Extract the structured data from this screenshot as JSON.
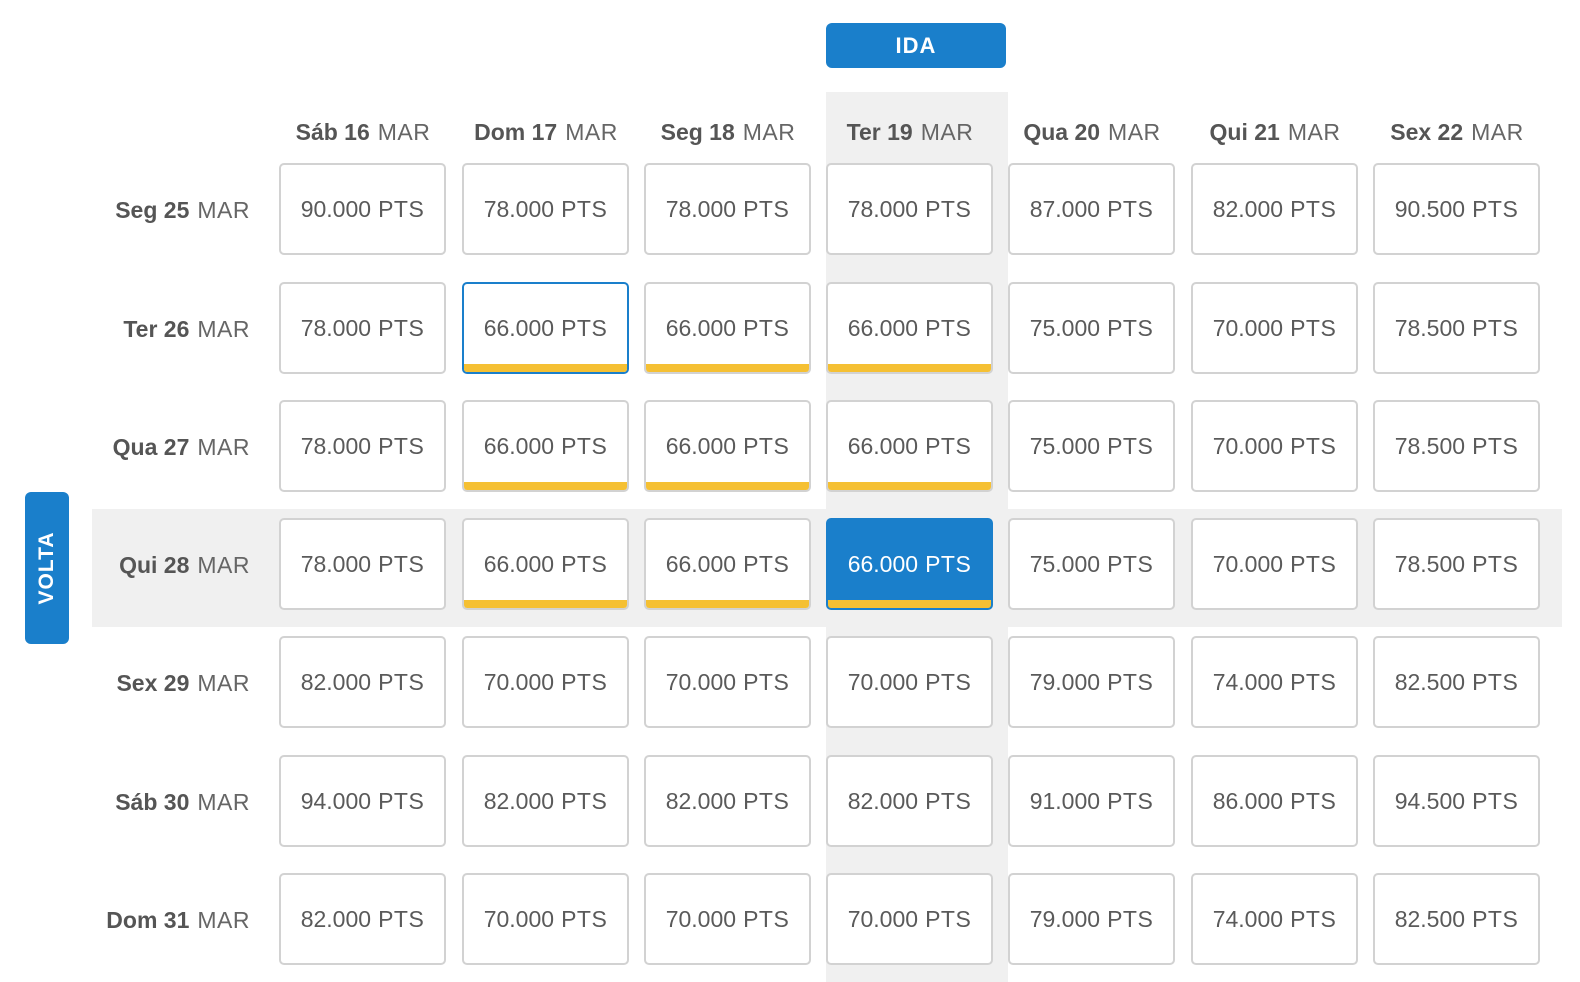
{
  "ida_label": "IDA",
  "volta_label": "VOLTA",
  "unit": "PTS",
  "colors": {
    "accent": "#1a7fcb",
    "best_price": "#f5c033",
    "highlight_bg": "#f0f0f0"
  },
  "departure_dates": [
    {
      "day": "Sáb 16",
      "month": "MAR"
    },
    {
      "day": "Dom 17",
      "month": "MAR"
    },
    {
      "day": "Seg 18",
      "month": "MAR"
    },
    {
      "day": "Ter 19",
      "month": "MAR"
    },
    {
      "day": "Qua 20",
      "month": "MAR"
    },
    {
      "day": "Qui 21",
      "month": "MAR"
    },
    {
      "day": "Sex 22",
      "month": "MAR"
    }
  ],
  "return_dates": [
    {
      "day": "Seg 25",
      "month": "MAR"
    },
    {
      "day": "Ter 26",
      "month": "MAR"
    },
    {
      "day": "Qua 27",
      "month": "MAR"
    },
    {
      "day": "Qui 28",
      "month": "MAR"
    },
    {
      "day": "Sex 29",
      "month": "MAR"
    },
    {
      "day": "Sáb 30",
      "month": "MAR"
    },
    {
      "day": "Dom 31",
      "month": "MAR"
    }
  ],
  "prices": [
    [
      "90.000",
      "78.000",
      "78.000",
      "78.000",
      "87.000",
      "82.000",
      "90.500"
    ],
    [
      "78.000",
      "66.000",
      "66.000",
      "66.000",
      "75.000",
      "70.000",
      "78.500"
    ],
    [
      "78.000",
      "66.000",
      "66.000",
      "66.000",
      "75.000",
      "70.000",
      "78.500"
    ],
    [
      "78.000",
      "66.000",
      "66.000",
      "66.000",
      "75.000",
      "70.000",
      "78.500"
    ],
    [
      "82.000",
      "70.000",
      "70.000",
      "70.000",
      "79.000",
      "74.000",
      "82.500"
    ],
    [
      "94.000",
      "82.000",
      "82.000",
      "82.000",
      "91.000",
      "86.000",
      "94.500"
    ],
    [
      "82.000",
      "70.000",
      "70.000",
      "70.000",
      "79.000",
      "74.000",
      "82.500"
    ]
  ],
  "best_price_cells": [
    [
      1,
      1
    ],
    [
      1,
      2
    ],
    [
      1,
      3
    ],
    [
      2,
      1
    ],
    [
      2,
      2
    ],
    [
      2,
      3
    ],
    [
      3,
      1
    ],
    [
      3,
      2
    ],
    [
      3,
      3
    ]
  ],
  "selected_cell": [
    3,
    3
  ],
  "focused_cell": [
    1,
    1
  ]
}
